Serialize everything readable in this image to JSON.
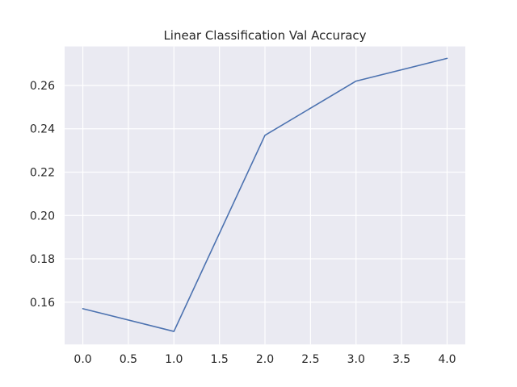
{
  "chart_data": {
    "type": "line",
    "title": "Linear Classification Val Accuracy",
    "xlabel": "",
    "ylabel": "",
    "x": [
      0,
      1,
      2,
      3,
      4
    ],
    "series": [
      {
        "values": [
          0.157,
          0.1465,
          0.237,
          0.262,
          0.2725
        ]
      }
    ],
    "xlim": [
      -0.2,
      4.2
    ],
    "ylim": [
      0.1405,
      0.278
    ],
    "xticks": [
      0.0,
      0.5,
      1.0,
      1.5,
      2.0,
      2.5,
      3.0,
      3.5,
      4.0
    ],
    "xtick_labels": [
      "0.0",
      "0.5",
      "1.0",
      "1.5",
      "2.0",
      "2.5",
      "3.0",
      "3.5",
      "4.0"
    ],
    "yticks": [
      0.16,
      0.18,
      0.2,
      0.22,
      0.24,
      0.26
    ],
    "ytick_labels": [
      "0.16",
      "0.18",
      "0.20",
      "0.22",
      "0.24",
      "0.26"
    ],
    "grid": true,
    "colors": {
      "background": "#eaeaf2",
      "grid": "#ffffff",
      "line": "#4c72b0"
    }
  }
}
